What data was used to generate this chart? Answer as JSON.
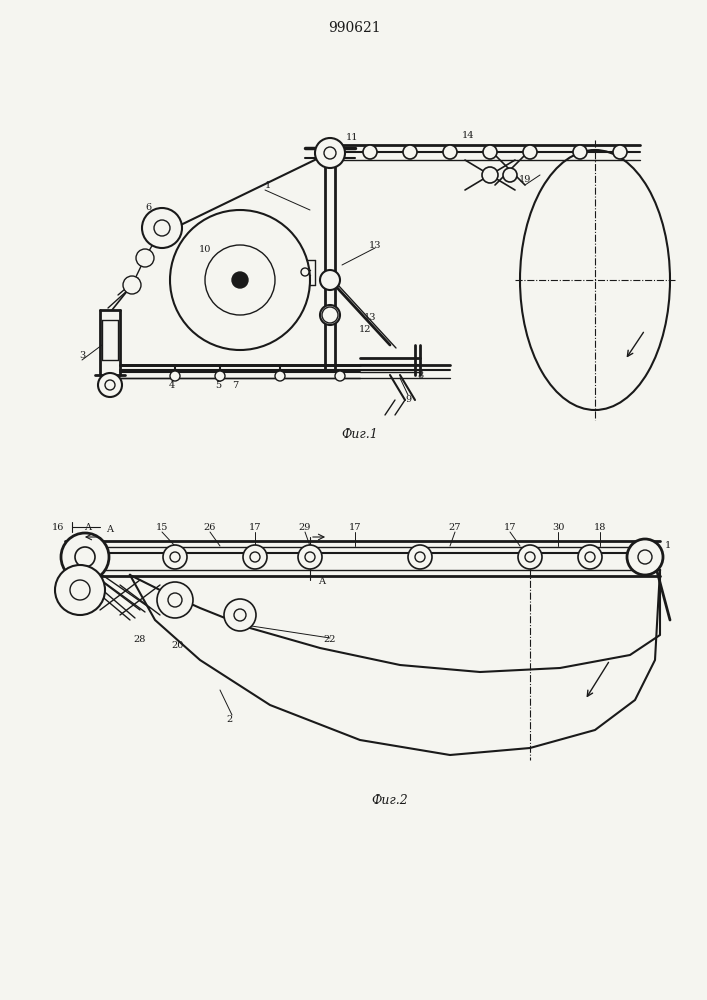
{
  "title": "990621",
  "title_fontsize": 10,
  "fig1_caption": "Фиг.1",
  "fig2_caption": "Фиг.2",
  "line_color": "#1a1a1a",
  "bg_color": "#f5f5f0"
}
